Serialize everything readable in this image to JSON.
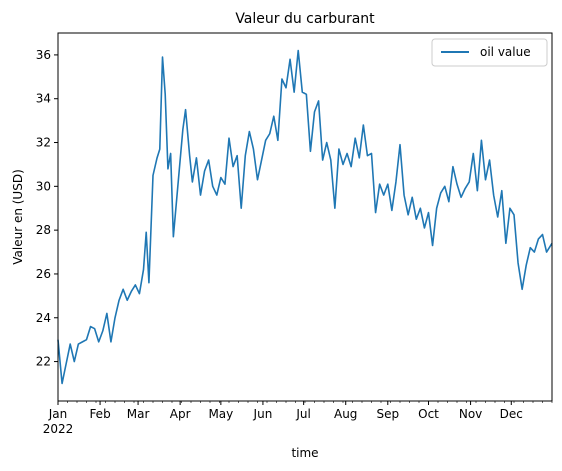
{
  "chart_data": {
    "type": "line",
    "title": "Valeur du carburant",
    "xlabel": "time",
    "ylabel": "Valeur en (USD)",
    "x_ticks": [
      "Jan",
      "Feb",
      "Mar",
      "Apr",
      "May",
      "Jun",
      "Jul",
      "Aug",
      "Sep",
      "Oct",
      "Nov",
      "Dec"
    ],
    "x_tick_sub": "2022",
    "y_ticks": [
      22,
      24,
      26,
      28,
      30,
      32,
      34,
      36
    ],
    "xlim": [
      "2022-01-01",
      "2022-12-31"
    ],
    "ylim": [
      20.2,
      37.0
    ],
    "legend": {
      "position": "upper-right"
    },
    "grid": false,
    "color": "#1f77b4",
    "series": [
      {
        "name": "oil value",
        "points": [
          [
            "2022-01-01",
            23.0
          ],
          [
            "2022-01-04",
            21.0
          ],
          [
            "2022-01-07",
            21.9
          ],
          [
            "2022-01-10",
            22.8
          ],
          [
            "2022-01-13",
            22.0
          ],
          [
            "2022-01-16",
            22.8
          ],
          [
            "2022-01-19",
            22.9
          ],
          [
            "2022-01-22",
            23.0
          ],
          [
            "2022-01-25",
            23.6
          ],
          [
            "2022-01-28",
            23.5
          ],
          [
            "2022-01-31",
            22.9
          ],
          [
            "2022-02-03",
            23.4
          ],
          [
            "2022-02-06",
            24.2
          ],
          [
            "2022-02-09",
            22.9
          ],
          [
            "2022-02-12",
            24.0
          ],
          [
            "2022-02-15",
            24.8
          ],
          [
            "2022-02-18",
            25.3
          ],
          [
            "2022-02-21",
            24.8
          ],
          [
            "2022-02-24",
            25.2
          ],
          [
            "2022-02-27",
            25.5
          ],
          [
            "2022-03-02",
            25.1
          ],
          [
            "2022-03-05",
            26.2
          ],
          [
            "2022-03-07",
            27.9
          ],
          [
            "2022-03-09",
            25.6
          ],
          [
            "2022-03-12",
            30.5
          ],
          [
            "2022-03-15",
            31.3
          ],
          [
            "2022-03-17",
            31.7
          ],
          [
            "2022-03-19",
            35.9
          ],
          [
            "2022-03-21",
            34.2
          ],
          [
            "2022-03-23",
            30.8
          ],
          [
            "2022-03-25",
            31.5
          ],
          [
            "2022-03-27",
            27.7
          ],
          [
            "2022-03-30",
            29.8
          ],
          [
            "2022-04-01",
            31.2
          ],
          [
            "2022-04-03",
            32.6
          ],
          [
            "2022-04-05",
            33.5
          ],
          [
            "2022-04-08",
            31.4
          ],
          [
            "2022-04-10",
            30.2
          ],
          [
            "2022-04-13",
            31.3
          ],
          [
            "2022-04-16",
            29.6
          ],
          [
            "2022-04-19",
            30.7
          ],
          [
            "2022-04-22",
            31.2
          ],
          [
            "2022-04-25",
            30.0
          ],
          [
            "2022-04-28",
            29.6
          ],
          [
            "2022-05-01",
            30.4
          ],
          [
            "2022-05-04",
            30.1
          ],
          [
            "2022-05-07",
            32.2
          ],
          [
            "2022-05-10",
            30.9
          ],
          [
            "2022-05-13",
            31.4
          ],
          [
            "2022-05-16",
            29.0
          ],
          [
            "2022-05-19",
            31.4
          ],
          [
            "2022-05-22",
            32.5
          ],
          [
            "2022-05-25",
            31.7
          ],
          [
            "2022-05-28",
            30.3
          ],
          [
            "2022-05-31",
            31.2
          ],
          [
            "2022-06-03",
            32.1
          ],
          [
            "2022-06-06",
            32.4
          ],
          [
            "2022-06-09",
            33.2
          ],
          [
            "2022-06-12",
            32.1
          ],
          [
            "2022-06-15",
            34.9
          ],
          [
            "2022-06-18",
            34.5
          ],
          [
            "2022-06-21",
            35.8
          ],
          [
            "2022-06-24",
            34.3
          ],
          [
            "2022-06-27",
            36.2
          ],
          [
            "2022-06-30",
            34.3
          ],
          [
            "2022-07-03",
            34.2
          ],
          [
            "2022-07-06",
            31.6
          ],
          [
            "2022-07-09",
            33.4
          ],
          [
            "2022-07-12",
            33.9
          ],
          [
            "2022-07-15",
            31.2
          ],
          [
            "2022-07-18",
            32.0
          ],
          [
            "2022-07-21",
            31.2
          ],
          [
            "2022-07-24",
            29.0
          ],
          [
            "2022-07-27",
            31.7
          ],
          [
            "2022-07-30",
            31.0
          ],
          [
            "2022-08-02",
            31.5
          ],
          [
            "2022-08-05",
            30.9
          ],
          [
            "2022-08-08",
            32.2
          ],
          [
            "2022-08-11",
            31.3
          ],
          [
            "2022-08-14",
            32.8
          ],
          [
            "2022-08-17",
            31.4
          ],
          [
            "2022-08-20",
            31.5
          ],
          [
            "2022-08-23",
            28.8
          ],
          [
            "2022-08-26",
            30.1
          ],
          [
            "2022-08-29",
            29.6
          ],
          [
            "2022-09-01",
            30.1
          ],
          [
            "2022-09-04",
            28.9
          ],
          [
            "2022-09-07",
            30.2
          ],
          [
            "2022-09-10",
            31.9
          ],
          [
            "2022-09-13",
            29.6
          ],
          [
            "2022-09-16",
            28.7
          ],
          [
            "2022-09-19",
            29.5
          ],
          [
            "2022-09-22",
            28.5
          ],
          [
            "2022-09-25",
            29.0
          ],
          [
            "2022-09-28",
            28.1
          ],
          [
            "2022-10-01",
            28.8
          ],
          [
            "2022-10-04",
            27.3
          ],
          [
            "2022-10-07",
            29.0
          ],
          [
            "2022-10-10",
            29.7
          ],
          [
            "2022-10-13",
            30.0
          ],
          [
            "2022-10-16",
            29.3
          ],
          [
            "2022-10-19",
            30.9
          ],
          [
            "2022-10-22",
            30.1
          ],
          [
            "2022-10-25",
            29.5
          ],
          [
            "2022-10-28",
            29.9
          ],
          [
            "2022-10-31",
            30.2
          ],
          [
            "2022-11-03",
            31.5
          ],
          [
            "2022-11-06",
            29.8
          ],
          [
            "2022-11-09",
            32.1
          ],
          [
            "2022-11-12",
            30.3
          ],
          [
            "2022-11-15",
            31.2
          ],
          [
            "2022-11-18",
            29.6
          ],
          [
            "2022-11-21",
            28.6
          ],
          [
            "2022-11-24",
            29.8
          ],
          [
            "2022-11-27",
            27.4
          ],
          [
            "2022-11-30",
            29.0
          ],
          [
            "2022-12-03",
            28.7
          ],
          [
            "2022-12-06",
            26.5
          ],
          [
            "2022-12-09",
            25.3
          ],
          [
            "2022-12-12",
            26.4
          ],
          [
            "2022-12-15",
            27.2
          ],
          [
            "2022-12-18",
            27.0
          ],
          [
            "2022-12-21",
            27.6
          ],
          [
            "2022-12-24",
            27.8
          ],
          [
            "2022-12-27",
            27.0
          ],
          [
            "2022-12-31",
            27.4
          ]
        ]
      }
    ]
  }
}
